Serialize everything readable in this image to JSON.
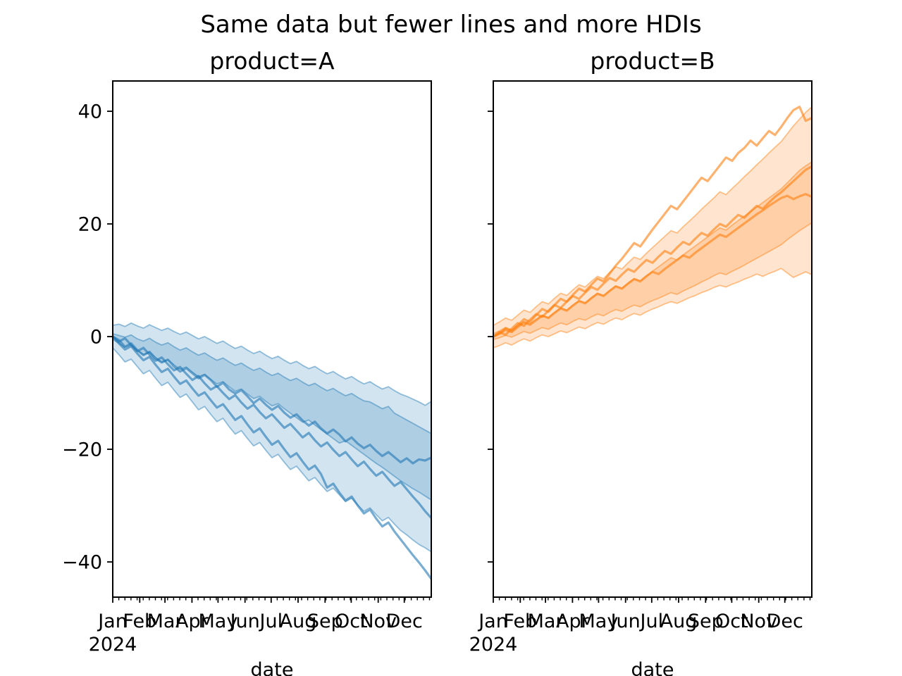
{
  "figure": {
    "suptitle": "Same data but fewer lines and more HDIs",
    "background": "#ffffff",
    "text_color": "#000000"
  },
  "chart_data": {
    "type": "line",
    "title": "Same data but fewer lines and more HDIs",
    "xlabel": "date",
    "ylabel": "",
    "x_year_label": "2024",
    "x_tick_months": [
      "Jan",
      "Feb",
      "Mar",
      "Apr",
      "May",
      "Jun",
      "Jul",
      "Aug",
      "Sep",
      "Oct",
      "Nov",
      "Dec"
    ],
    "x_minor_tick_interval_days": 7,
    "y_ticks": [
      40,
      20,
      0,
      -20,
      -40
    ],
    "y_tick_labels": [
      "40",
      "20",
      "0",
      "−20",
      "−40"
    ],
    "ylim": [
      -46.25,
      45.4
    ],
    "xlim": [
      "2024-01-01",
      "2024-12-31"
    ],
    "grid": false,
    "legend": "none",
    "weeks": 53,
    "style": {
      "fill_alpha": 0.2,
      "edge_alpha": 0.45,
      "line_alpha": 0.6,
      "line_width": 3.2,
      "edge_width": 1.8
    },
    "subplots": [
      {
        "title": "product=A",
        "color": "#1f77b4",
        "hdi_outer": {
          "top": [
            2.0,
            2.2,
            1.8,
            2.4,
            1.9,
            1.5,
            2.1,
            1.6,
            1.1,
            1.5,
            0.9,
            0.4,
            0.8,
            0.2,
            -0.4,
            0.0,
            -0.6,
            -1.2,
            -0.8,
            -1.5,
            -2.1,
            -1.7,
            -2.4,
            -3.0,
            -2.6,
            -3.3,
            -3.9,
            -3.5,
            -4.2,
            -4.8,
            -4.4,
            -5.1,
            -5.7,
            -5.3,
            -6.0,
            -6.6,
            -6.2,
            -6.9,
            -7.5,
            -7.1,
            -7.8,
            -8.4,
            -8.0,
            -8.7,
            -9.3,
            -8.9,
            -9.6,
            -10.2,
            -10.6,
            -11.1,
            -11.6,
            -12.2,
            -11.5
          ],
          "bottom": [
            -2.0,
            -3.2,
            -4.5,
            -4.0,
            -5.3,
            -6.6,
            -6.0,
            -7.4,
            -8.7,
            -8.1,
            -9.5,
            -10.8,
            -10.2,
            -11.6,
            -13.0,
            -12.4,
            -13.8,
            -15.1,
            -14.5,
            -16.0,
            -17.3,
            -16.7,
            -18.1,
            -19.4,
            -18.8,
            -20.2,
            -21.5,
            -20.9,
            -22.3,
            -23.6,
            -23.0,
            -24.3,
            -25.6,
            -25.0,
            -26.3,
            -27.5,
            -26.9,
            -28.1,
            -29.3,
            -28.7,
            -29.9,
            -31.0,
            -30.4,
            -31.6,
            -32.7,
            -32.1,
            -33.3,
            -34.4,
            -35.2,
            -36.1,
            -36.9,
            -37.5,
            -38.2
          ]
        },
        "hdi_inner": {
          "top": [
            0.5,
            0.2,
            -0.1,
            0.3,
            -0.4,
            -0.8,
            -0.3,
            -1.0,
            -1.5,
            -1.1,
            -1.8,
            -2.4,
            -2.0,
            -2.7,
            -3.3,
            -2.9,
            -3.6,
            -4.2,
            -3.8,
            -4.5,
            -5.1,
            -4.7,
            -5.4,
            -6.0,
            -5.6,
            -6.3,
            -6.9,
            -6.5,
            -7.2,
            -7.8,
            -7.4,
            -8.1,
            -8.7,
            -8.3,
            -9.0,
            -9.6,
            -9.2,
            -9.9,
            -10.5,
            -10.1,
            -10.8,
            -11.4,
            -11.6,
            -12.2,
            -12.8,
            -12.4,
            -13.6,
            -14.2,
            -14.8,
            -15.4,
            -16.0,
            -16.6,
            -17.2
          ],
          "bottom": [
            -0.5,
            -1.2,
            -1.9,
            -1.5,
            -2.4,
            -3.2,
            -2.8,
            -3.7,
            -4.5,
            -4.1,
            -5.0,
            -5.8,
            -5.4,
            -6.3,
            -7.1,
            -6.7,
            -7.6,
            -8.4,
            -8.0,
            -8.9,
            -9.7,
            -9.3,
            -10.2,
            -11.0,
            -10.6,
            -11.5,
            -12.3,
            -11.9,
            -12.8,
            -13.6,
            -14.4,
            -15.2,
            -14.8,
            -15.7,
            -16.5,
            -17.3,
            -18.1,
            -18.9,
            -18.5,
            -19.3,
            -20.1,
            -20.9,
            -21.7,
            -22.5,
            -23.2,
            -24.0,
            -24.8,
            -25.6,
            -26.3,
            -27.0,
            -27.6,
            -28.3,
            -29.0
          ]
        },
        "samples": [
          [
            0,
            -0.6,
            -1.8,
            -1.2,
            -2.4,
            -3.3,
            -2.7,
            -3.9,
            -4.6,
            -4.1,
            -5.3,
            -6.2,
            -5.6,
            -6.5,
            -7.4,
            -6.8,
            -7.7,
            -8.9,
            -8.2,
            -9.4,
            -10.1,
            -9.5,
            -10.6,
            -11.8,
            -11.0,
            -12.1,
            -13.0,
            -12.3,
            -13.5,
            -14.4,
            -13.8,
            -14.9,
            -15.8,
            -15.1,
            -16.3,
            -17.2,
            -16.5,
            -17.4,
            -18.6,
            -17.9,
            -19.0,
            -19.8,
            -19.2,
            -20.3,
            -21.2,
            -20.5,
            -21.4,
            -22.3,
            -21.6,
            -22.5,
            -21.8,
            -22.0,
            -21.5
          ],
          [
            0,
            -0.9,
            -0.3,
            -1.5,
            -2.6,
            -2.0,
            -3.2,
            -4.3,
            -3.7,
            -4.9,
            -6.0,
            -5.4,
            -6.6,
            -7.7,
            -7.0,
            -8.3,
            -9.4,
            -8.8,
            -10.0,
            -11.1,
            -10.4,
            -11.7,
            -12.8,
            -12.1,
            -13.4,
            -14.5,
            -13.8,
            -15.0,
            -16.2,
            -15.5,
            -16.7,
            -17.9,
            -17.1,
            -18.4,
            -19.5,
            -18.8,
            -20.1,
            -21.2,
            -20.5,
            -21.8,
            -23.0,
            -22.2,
            -23.5,
            -24.7,
            -24.0,
            -25.3,
            -26.5,
            -25.8,
            -27.1,
            -28.4,
            -29.6,
            -31.0,
            -32.2
          ],
          [
            0,
            -1.2,
            -2.3,
            -1.7,
            -3.0,
            -4.2,
            -3.6,
            -5.0,
            -6.3,
            -5.7,
            -7.1,
            -8.4,
            -7.8,
            -9.2,
            -10.5,
            -9.9,
            -11.3,
            -12.6,
            -12.0,
            -13.4,
            -14.8,
            -14.1,
            -15.6,
            -17.0,
            -16.3,
            -17.8,
            -19.2,
            -18.5,
            -20.0,
            -21.4,
            -20.7,
            -22.2,
            -23.6,
            -22.9,
            -24.4,
            -26.8,
            -26.1,
            -27.7,
            -29.1,
            -28.4,
            -30.0,
            -31.4,
            -30.7,
            -32.3,
            -33.7,
            -33.0,
            -34.6,
            -36.0,
            -37.4,
            -38.8,
            -40.1,
            -41.5,
            -43.0
          ]
        ]
      },
      {
        "title": "product=B",
        "color": "#ff7f0e",
        "hdi_outer": {
          "top": [
            2.0,
            2.6,
            3.3,
            2.9,
            3.8,
            4.7,
            4.3,
            5.3,
            6.2,
            5.8,
            6.8,
            7.7,
            7.3,
            8.3,
            9.2,
            8.8,
            9.8,
            10.7,
            10.3,
            11.4,
            12.4,
            12.0,
            13.1,
            14.1,
            13.7,
            14.8,
            15.8,
            16.8,
            17.8,
            18.8,
            18.4,
            19.5,
            20.5,
            21.5,
            22.6,
            23.6,
            24.6,
            25.7,
            25.2,
            26.3,
            27.3,
            28.4,
            29.4,
            30.5,
            31.5,
            32.6,
            33.6,
            34.6,
            36.0,
            37.4,
            38.6,
            39.8,
            40.8
          ],
          "bottom": [
            -2.0,
            -1.6,
            -1.1,
            -1.5,
            -0.9,
            -0.4,
            -0.8,
            -0.2,
            0.3,
            0.0,
            0.5,
            1.0,
            0.7,
            1.2,
            1.7,
            1.4,
            2.0,
            2.5,
            2.2,
            2.8,
            3.3,
            3.0,
            3.6,
            4.1,
            3.8,
            4.4,
            4.9,
            5.3,
            5.8,
            6.2,
            5.9,
            6.4,
            6.9,
            7.3,
            7.8,
            8.2,
            8.7,
            9.1,
            8.8,
            9.3,
            9.7,
            10.2,
            10.6,
            11.1,
            10.7,
            11.2,
            11.6,
            12.1,
            11.3,
            10.5,
            11.0,
            11.5,
            11.0
          ]
        },
        "hdi_inner": {
          "top": [
            0.5,
            1.0,
            1.6,
            1.2,
            1.9,
            2.7,
            2.3,
            3.1,
            3.8,
            3.4,
            4.3,
            5.1,
            4.7,
            5.6,
            6.4,
            6.0,
            6.9,
            7.7,
            7.3,
            8.2,
            9.0,
            8.6,
            9.5,
            10.3,
            9.9,
            10.8,
            11.6,
            12.4,
            13.2,
            14.0,
            13.6,
            14.5,
            15.3,
            16.1,
            16.9,
            17.7,
            18.5,
            19.3,
            18.9,
            19.8,
            20.6,
            21.4,
            22.2,
            23.0,
            23.8,
            24.6,
            25.4,
            26.2,
            27.3,
            28.4,
            29.5,
            30.3,
            31.0
          ],
          "bottom": [
            -0.5,
            -0.2,
            0.2,
            -0.1,
            0.4,
            0.9,
            0.6,
            1.1,
            1.6,
            1.3,
            1.9,
            2.4,
            2.1,
            2.7,
            3.2,
            2.9,
            3.5,
            4.0,
            3.7,
            4.3,
            4.8,
            4.5,
            5.1,
            5.6,
            5.3,
            5.9,
            6.4,
            6.8,
            7.3,
            7.8,
            7.5,
            8.1,
            8.6,
            9.1,
            9.7,
            10.2,
            10.8,
            11.3,
            11.0,
            11.6,
            12.1,
            12.7,
            13.3,
            13.9,
            14.5,
            15.1,
            15.7,
            16.3,
            17.2,
            18.0,
            18.8,
            19.5,
            20.2
          ]
        },
        "samples": [
          [
            0,
            0.8,
            0.3,
            1.4,
            2.4,
            1.9,
            3.0,
            4.0,
            3.5,
            4.6,
            5.6,
            5.1,
            6.2,
            7.2,
            6.7,
            7.8,
            8.8,
            8.3,
            9.4,
            10.4,
            9.9,
            11.0,
            12.0,
            11.5,
            12.6,
            13.6,
            13.1,
            14.2,
            15.2,
            14.7,
            15.8,
            16.8,
            16.3,
            17.4,
            18.4,
            17.9,
            19.0,
            20.0,
            19.5,
            20.6,
            21.6,
            21.1,
            22.2,
            23.2,
            22.7,
            23.8,
            24.8,
            25.6,
            26.6,
            27.6,
            28.6,
            29.6,
            30.2
          ],
          [
            0,
            0.5,
            1.2,
            0.8,
            1.7,
            2.5,
            2.1,
            2.9,
            3.7,
            3.3,
            4.2,
            5.0,
            4.6,
            5.5,
            6.3,
            5.9,
            6.8,
            7.6,
            7.2,
            8.1,
            8.9,
            8.5,
            9.4,
            10.2,
            9.8,
            10.7,
            11.5,
            11.1,
            12.0,
            12.8,
            13.6,
            14.4,
            14.0,
            14.9,
            15.7,
            16.5,
            17.3,
            18.1,
            17.7,
            18.5,
            19.3,
            20.1,
            20.9,
            21.7,
            22.4,
            23.2,
            23.9,
            24.6,
            25.0,
            24.4,
            24.9,
            25.3,
            24.8
          ],
          [
            0,
            0.6,
            1.5,
            1.0,
            2.0,
            3.1,
            2.6,
            3.8,
            4.9,
            4.4,
            5.6,
            6.7,
            6.2,
            7.4,
            8.5,
            8.0,
            9.2,
            10.3,
            9.8,
            11.2,
            12.6,
            13.8,
            15.2,
            16.6,
            16.0,
            17.5,
            19.0,
            20.4,
            21.8,
            23.2,
            22.6,
            24.0,
            25.4,
            26.8,
            28.2,
            27.6,
            29.0,
            30.4,
            31.8,
            31.2,
            32.6,
            33.5,
            34.8,
            33.9,
            35.2,
            36.5,
            35.8,
            37.2,
            38.8,
            40.2,
            40.8,
            38.3,
            38.8
          ]
        ]
      }
    ]
  }
}
